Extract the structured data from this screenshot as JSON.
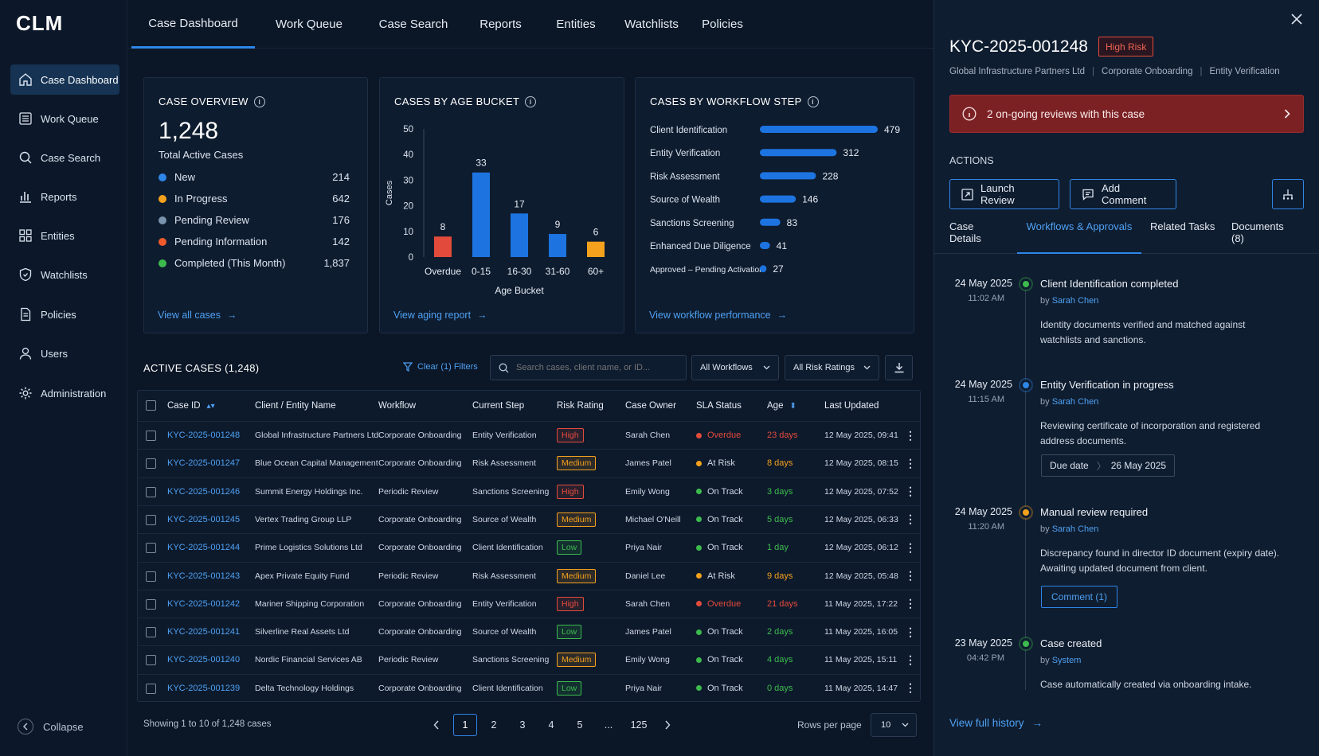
{
  "app": {
    "logo": "CLM"
  },
  "sidebar": {
    "items": [
      {
        "label": "Case Dashboard",
        "icon": "home-icon"
      },
      {
        "label": "Work Queue",
        "icon": "list-icon"
      },
      {
        "label": "Case Search",
        "icon": "search-icon"
      },
      {
        "label": "Reports",
        "icon": "bar-chart-icon"
      },
      {
        "label": "Entities",
        "icon": "grid-icon"
      },
      {
        "label": "Watchlists",
        "icon": "shield-icon"
      },
      {
        "label": "Policies",
        "icon": "document-icon"
      },
      {
        "label": "Users",
        "icon": "user-icon"
      },
      {
        "label": "Administration",
        "icon": "gear-icon"
      }
    ],
    "collapse_label": "Collapse"
  },
  "topnav": {
    "tabs": [
      "Case Dashboard",
      "Work Queue",
      "Case Search",
      "Reports",
      "Entities",
      "Watchlists",
      "Policies"
    ]
  },
  "overview": {
    "title": "CASE OVERVIEW",
    "total": "1,248",
    "total_label": "Total Active Cases",
    "statuses": [
      {
        "label": "New",
        "value": "214",
        "color": "#2e86e8"
      },
      {
        "label": "In Progress",
        "value": "642",
        "color": "#f4a11d"
      },
      {
        "label": "Pending Review",
        "value": "176",
        "color": "#7a93ad"
      },
      {
        "label": "Pending Information",
        "value": "142",
        "color": "#ee5a2c"
      },
      {
        "label": "Completed (This Month)",
        "value": "1,837",
        "color": "#3dba4e"
      }
    ],
    "link": "View all cases"
  },
  "age_chart": {
    "title": "CASES BY AGE BUCKET",
    "link": "View aging report",
    "chart_data": {
      "type": "bar",
      "categories": [
        "Overdue",
        "0-15",
        "16-30",
        "31-60",
        "60+"
      ],
      "values": [
        8,
        33,
        17,
        9,
        6
      ],
      "colors": [
        "#e24b3b",
        "#1d74e0",
        "#1d74e0",
        "#1d74e0",
        "#f4a11d"
      ],
      "ylabel": "Cases",
      "xlabel": "Age Bucket",
      "ylim": [
        0,
        50
      ],
      "yticks": [
        0,
        10,
        20,
        30,
        40,
        50
      ]
    }
  },
  "workflow_chart": {
    "title": "CASES BY WORKFLOW STEP",
    "link": "View workflow performance",
    "chart_data": {
      "type": "bar",
      "orientation": "horizontal",
      "categories": [
        "Client Identification",
        "Entity Verification",
        "Risk Assessment",
        "Source of Wealth",
        "Sanctions Screening",
        "Enhanced Due Diligence",
        "Approved – Pending Activation"
      ],
      "values": [
        479,
        312,
        228,
        146,
        83,
        41,
        27
      ],
      "color": "#1d74e0"
    }
  },
  "active_cases": {
    "title": "ACTIVE CASES (1,248)",
    "clear_filters": "Clear (1) Filters",
    "search_placeholder": "Search cases, client name, or ID...",
    "workflow_filter": "All Workflows",
    "risk_filter": "All Risk Ratings",
    "columns": [
      "Case ID",
      "Client / Entity Name",
      "Workflow",
      "Current Step",
      "Risk Rating",
      "Case Owner",
      "SLA Status",
      "Age",
      "Last Updated"
    ],
    "rows": [
      {
        "id": "KYC-2025-001248",
        "client": "Global Infrastructure Partners Ltd",
        "workflow": "Corporate Onboarding",
        "step": "Entity Verification",
        "risk": "High",
        "owner": "Sarah Chen",
        "sla": "Overdue",
        "age": "23 days",
        "updated": "12 May 2025, 09:41"
      },
      {
        "id": "KYC-2025-001247",
        "client": "Blue Ocean Capital Management",
        "workflow": "Corporate Onboarding",
        "step": "Risk Assessment",
        "risk": "Medium",
        "owner": "James Patel",
        "sla": "At Risk",
        "age": "8 days",
        "updated": "12 May 2025, 08:15"
      },
      {
        "id": "KYC-2025-001246",
        "client": "Summit Energy Holdings Inc.",
        "workflow": "Periodic Review",
        "step": "Sanctions Screening",
        "risk": "High",
        "owner": "Emily Wong",
        "sla": "On Track",
        "age": "3 days",
        "updated": "12 May 2025, 07:52"
      },
      {
        "id": "KYC-2025-001245",
        "client": "Vertex Trading Group LLP",
        "workflow": "Corporate Onboarding",
        "step": "Source of Wealth",
        "risk": "Medium",
        "owner": "Michael O'Neill",
        "sla": "On Track",
        "age": "5 days",
        "updated": "12 May 2025, 06:33"
      },
      {
        "id": "KYC-2025-001244",
        "client": "Prime Logistics Solutions Ltd",
        "workflow": "Corporate Onboarding",
        "step": "Client Identification",
        "risk": "Low",
        "owner": "Priya Nair",
        "sla": "On Track",
        "age": "1 day",
        "updated": "12 May 2025, 06:12"
      },
      {
        "id": "KYC-2025-001243",
        "client": "Apex Private Equity Fund",
        "workflow": "Periodic Review",
        "step": "Risk Assessment",
        "risk": "Medium",
        "owner": "Daniel Lee",
        "sla": "At Risk",
        "age": "9 days",
        "updated": "12 May 2025, 05:48"
      },
      {
        "id": "KYC-2025-001242",
        "client": "Mariner Shipping Corporation",
        "workflow": "Corporate Onboarding",
        "step": "Entity Verification",
        "risk": "High",
        "owner": "Sarah Chen",
        "sla": "Overdue",
        "age": "21 days",
        "updated": "11 May 2025, 17:22"
      },
      {
        "id": "KYC-2025-001241",
        "client": "Silverline Real Assets Ltd",
        "workflow": "Corporate Onboarding",
        "step": "Source of Wealth",
        "risk": "Low",
        "owner": "James Patel",
        "sla": "On Track",
        "age": "2 days",
        "updated": "11 May 2025, 16:05"
      },
      {
        "id": "KYC-2025-001240",
        "client": "Nordic Financial Services AB",
        "workflow": "Periodic Review",
        "step": "Sanctions Screening",
        "risk": "Medium",
        "owner": "Emily Wong",
        "sla": "On Track",
        "age": "4 days",
        "updated": "11 May 2025, 15:11"
      },
      {
        "id": "KYC-2025-001239",
        "client": "Delta Technology Holdings",
        "workflow": "Corporate Onboarding",
        "step": "Client Identification",
        "risk": "Low",
        "owner": "Priya Nair",
        "sla": "On Track",
        "age": "0 days",
        "updated": "11 May 2025, 14:47"
      }
    ],
    "showing": "Showing 1 to 10 of 1,248 cases",
    "pages": [
      "1",
      "2",
      "3",
      "4",
      "5",
      "...",
      "125"
    ],
    "rows_per_page_label": "Rows per page",
    "rows_per_page": "10"
  },
  "colors": {
    "high": "#e24b3b",
    "medium": "#f4a11d",
    "low": "#3dba4e",
    "overdue": "#e24b3b",
    "at_risk": "#f4a11d",
    "on_track": "#3dba4e",
    "accent": "#2e86e8"
  },
  "panel": {
    "case_id": "KYC-2025-001248",
    "risk_badge": "High Risk",
    "meta": [
      "Global Infrastructure Partners Ltd",
      "Corporate Onboarding",
      "Entity Verification"
    ],
    "alert": "2 on-going reviews with this case",
    "actions_label": "ACTIONS",
    "launch_review": "Launch Review",
    "add_comment": "Add Comment",
    "tabs": [
      "Case Details",
      "Workflows & Approvals",
      "Related Tasks",
      "Documents (8)"
    ],
    "timeline": [
      {
        "date": "24 May 2025",
        "time": "11:02 AM",
        "title": "Client Identification completed",
        "by_prefix": "by",
        "by": "Sarah Chen",
        "desc": "Identity documents verified and matched against watchlists and sanctions.",
        "color": "#3dba4e"
      },
      {
        "date": "24 May 2025",
        "time": "11:15 AM",
        "title": "Entity Verification in progress",
        "by_prefix": "by",
        "by": "Sarah Chen",
        "desc": "Reviewing certificate of incorporation and registered address documents.",
        "color": "#2e86e8",
        "due_label": "Due date",
        "due_value": "26 May 2025"
      },
      {
        "date": "24 May 2025",
        "time": "11:20 AM",
        "title": "Manual review required",
        "by_prefix": "by",
        "by": "Sarah Chen",
        "desc": "Discrepancy found in director ID document (expiry date). Awaiting updated document from client.",
        "color": "#f4a11d",
        "comment_btn": "Comment (1)"
      },
      {
        "date": "23 May 2025",
        "time": "04:42 PM",
        "title": "Case created",
        "by_prefix": "by",
        "by": "System",
        "desc": "Case automatically created via onboarding intake.",
        "color": "#3dba4e"
      }
    ],
    "history_link": "View full history"
  }
}
